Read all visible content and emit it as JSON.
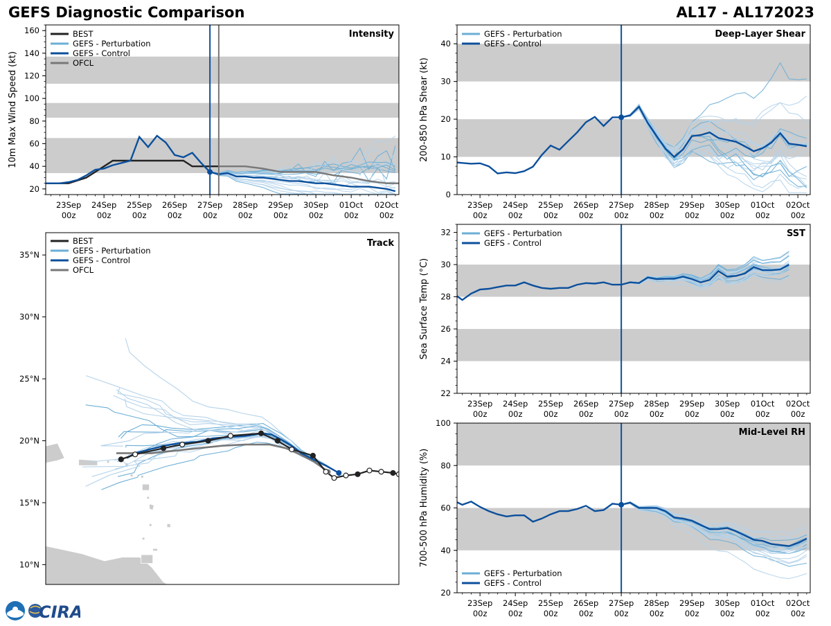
{
  "header": {
    "title": "GEFS Diagnostic Comparison",
    "storm_id": "AL17 - AL172023"
  },
  "colors": {
    "best": "#222222",
    "perturbation": "#6baed6",
    "perturbation_light": "#b5d3ea",
    "control": "#0b4f9c",
    "ofcl": "#777777",
    "band": "#cccccc",
    "land": "#cccccc"
  },
  "time_axis": {
    "tick_labels": [
      [
        "23Sep",
        "00z"
      ],
      [
        "24Sep",
        "00z"
      ],
      [
        "25Sep",
        "00z"
      ],
      [
        "26Sep",
        "00z"
      ],
      [
        "27Sep",
        "00z"
      ],
      [
        "28Sep",
        "00z"
      ],
      [
        "29Sep",
        "00z"
      ],
      [
        "30Sep",
        "00z"
      ],
      [
        "01Oct",
        "00z"
      ],
      [
        "02Oct",
        "00z"
      ]
    ],
    "range_days": [
      -0.65,
      9.35
    ],
    "init_day": 4.0,
    "ofcl_start_day": 4.25
  },
  "logo": {
    "text": "CIRA",
    "icon": "noaa-logo-icon"
  },
  "chart_data": [
    {
      "id": "intensity",
      "type": "line",
      "title": "Intensity",
      "ylabel": "10m Max Wind Speed (kt)",
      "ylim": [
        15,
        165
      ],
      "yticks": [
        20,
        40,
        60,
        80,
        100,
        120,
        140,
        160
      ],
      "bands": [
        [
          34,
          65
        ],
        [
          83,
          96
        ],
        [
          113,
          137
        ]
      ],
      "legend": [
        "BEST",
        "GEFS - Perturbation",
        "GEFS - Control",
        "OFCL"
      ],
      "series": [
        {
          "name": "BEST",
          "x": [
            -0.75,
            0,
            0.5,
            1,
            1.25,
            1.75,
            2,
            2.5,
            3,
            3.25,
            3.5,
            4,
            4.25
          ],
          "y": [
            25,
            25,
            30,
            40,
            45,
            45,
            45,
            45,
            45,
            45,
            40,
            40,
            40
          ]
        },
        {
          "name": "GEFS - Control",
          "x": [
            -0.75,
            -0.25,
            0,
            0.25,
            0.5,
            0.75,
            1,
            1.25,
            1.5,
            1.75,
            2,
            2.25,
            2.5,
            2.75,
            3,
            3.25,
            3.5,
            3.75,
            4,
            4.25,
            4.5,
            4.75,
            5,
            5.25,
            5.5,
            5.75,
            6,
            6.25,
            6.5,
            6.75,
            7,
            7.25,
            7.5,
            7.75,
            8,
            8.25,
            8.5,
            8.75,
            9,
            9.25
          ],
          "y": [
            25,
            25,
            26,
            28,
            32,
            37,
            38,
            41,
            43,
            45,
            66,
            57,
            67,
            61,
            50,
            48,
            52,
            43,
            35,
            33,
            34,
            31,
            31,
            30,
            30,
            29,
            28,
            27,
            27,
            26,
            25,
            25,
            24,
            23,
            22,
            22,
            22,
            21,
            20,
            18
          ]
        },
        {
          "name": "OFCL",
          "x": [
            4.25,
            5,
            5.5,
            6,
            6.5,
            7,
            7.5,
            8,
            8.5,
            9,
            9.35
          ],
          "y": [
            40,
            40,
            38,
            35,
            35,
            35,
            32,
            30,
            27,
            25,
            25
          ]
        }
      ],
      "perturbation_members": 20
    },
    {
      "id": "shear",
      "type": "line",
      "title": "Deep-Layer Shear",
      "ylabel": "200-850 hPa Shear (kt)",
      "ylim": [
        0,
        45
      ],
      "yticks": [
        0,
        10,
        20,
        30,
        40
      ],
      "bands": [
        [
          10,
          20
        ],
        [
          30,
          40
        ]
      ],
      "legend": [
        "GEFS - Perturbation",
        "GEFS - Control"
      ],
      "series": [
        {
          "name": "GEFS - Control",
          "x": [
            -0.75,
            -0.5,
            -0.25,
            0,
            0.25,
            0.5,
            0.75,
            1,
            1.25,
            1.5,
            1.75,
            2,
            2.25,
            2.5,
            2.75,
            3,
            3.25,
            3.5,
            3.75,
            4,
            4.25,
            4.5,
            4.75,
            5,
            5.25,
            5.5,
            5.75,
            6,
            6.25,
            6.5,
            6.75,
            7,
            7.25,
            7.5,
            7.75,
            8,
            8.25,
            8.5,
            8.75,
            9,
            9.25
          ],
          "y": [
            8.6,
            8.4,
            8.2,
            8.3,
            7.5,
            5.6,
            5.9,
            5.7,
            6.2,
            7.4,
            10.5,
            13,
            11.9,
            14.2,
            16.5,
            19.2,
            20.6,
            18.2,
            20.5,
            20.5,
            21,
            23.3,
            19,
            15.5,
            12.2,
            10,
            12,
            15.5,
            15.8,
            16.5,
            15,
            14.5,
            14,
            12.8,
            11.5,
            12.3,
            13.8,
            16.3,
            13.5,
            13.2,
            12.8
          ]
        }
      ],
      "perturbation_members": 20
    },
    {
      "id": "sst",
      "type": "line",
      "title": "SST",
      "ylabel": "Sea Surface Temp (°C)",
      "ylim": [
        22,
        32.5
      ],
      "yticks": [
        22,
        24,
        26,
        28,
        30,
        32
      ],
      "bands": [
        [
          24,
          26
        ],
        [
          28,
          30
        ]
      ],
      "legend": [
        "GEFS - Perturbation",
        "GEFS - Control"
      ],
      "series": [
        {
          "name": "GEFS - Control",
          "x": [
            -0.75,
            -0.5,
            -0.25,
            0,
            0.25,
            0.5,
            0.75,
            1,
            1.25,
            1.5,
            1.75,
            2,
            2.25,
            2.5,
            2.75,
            3,
            3.25,
            3.5,
            3.75,
            4,
            4.25,
            4.5,
            4.75,
            5,
            5.25,
            5.5,
            5.75,
            6,
            6.25,
            6.5,
            6.75,
            7,
            7.25,
            7.5,
            7.75,
            8,
            8.25,
            8.5,
            8.75
          ],
          "y": [
            28.2,
            27.8,
            28.2,
            28.45,
            28.5,
            28.6,
            28.7,
            28.7,
            28.9,
            28.7,
            28.55,
            28.5,
            28.55,
            28.55,
            28.75,
            28.85,
            28.82,
            28.9,
            28.75,
            28.75,
            28.9,
            28.85,
            29.2,
            29.1,
            29.12,
            29.12,
            29.25,
            29.1,
            28.9,
            29.05,
            29.6,
            29.25,
            29.3,
            29.45,
            29.85,
            29.65,
            29.65,
            29.7,
            30.0
          ]
        }
      ],
      "perturbation_members": 20
    },
    {
      "id": "rh",
      "type": "line",
      "title": "Mid-Level RH",
      "ylabel": "700-500 hPa Humidity (%)",
      "ylim": [
        20,
        100
      ],
      "yticks": [
        20,
        40,
        60,
        80,
        100
      ],
      "bands": [
        [
          40,
          60
        ],
        [
          80,
          100
        ]
      ],
      "legend": [
        "GEFS - Perturbation",
        "GEFS - Control"
      ],
      "series": [
        {
          "name": "GEFS - Control",
          "x": [
            -0.75,
            -0.5,
            -0.25,
            0,
            0.25,
            0.5,
            0.75,
            1,
            1.25,
            1.5,
            1.75,
            2,
            2.25,
            2.5,
            2.75,
            3,
            3.25,
            3.5,
            3.75,
            4,
            4.25,
            4.5,
            4.75,
            5,
            5.25,
            5.5,
            5.75,
            6,
            6.25,
            6.5,
            6.75,
            7,
            7.25,
            7.5,
            7.75,
            8,
            8.25,
            8.5,
            8.75,
            9,
            9.25
          ],
          "y": [
            63.5,
            61.5,
            63,
            60.5,
            58.5,
            57,
            56,
            56.5,
            56.5,
            53.5,
            55,
            57,
            58.5,
            58.5,
            59.5,
            61,
            58.5,
            59,
            62,
            61.5,
            62.5,
            60,
            60,
            60,
            58.5,
            55.5,
            55,
            54,
            52,
            50,
            50,
            50.5,
            49,
            47,
            45,
            44.5,
            43,
            42.5,
            42,
            43.5,
            45.5
          ]
        }
      ],
      "perturbation_members": 20
    },
    {
      "id": "track",
      "type": "scatter",
      "title": "Track",
      "lat_range": [
        8.4,
        36.8
      ],
      "lon_range": [
        -70.0,
        -40.0
      ],
      "lat_ticks": [
        {
          "value": 10,
          "label": "10°N"
        },
        {
          "value": 15,
          "label": "15°N"
        },
        {
          "value": 20,
          "label": "20°N"
        },
        {
          "value": 25,
          "label": "25°N"
        },
        {
          "value": 30,
          "label": "30°N"
        },
        {
          "value": 35,
          "label": "35°N"
        }
      ],
      "legend": [
        "BEST",
        "GEFS - Perturbation",
        "GEFS - Control",
        "OFCL"
      ],
      "best_track": {
        "lon": [
          -40.0,
          -40.5,
          -41.5,
          -42.5,
          -43.5,
          -44.5,
          -45.5,
          -46.2,
          -47.3,
          -49.1,
          -50.3,
          -51.7,
          -54.3,
          -56.2,
          -58.4,
          -60.0,
          -62.4,
          -63.6
        ],
        "lat": [
          17.3,
          17.4,
          17.5,
          17.6,
          17.3,
          17.2,
          17.0,
          17.5,
          18.8,
          19.3,
          20.0,
          20.6,
          20.4,
          20.0,
          19.7,
          19.4,
          18.9,
          18.5
        ],
        "filled": [
          false,
          true,
          false,
          false,
          true,
          false,
          false,
          false,
          true,
          false,
          true,
          true,
          false,
          true,
          false,
          true,
          false,
          true
        ]
      },
      "control_track": {
        "lon": [
          -45.1,
          -46.2,
          -47.3,
          -48.3,
          -49.1,
          -50.0,
          -50.8,
          -51.5,
          -53.0,
          -54.4,
          -55.8,
          -57.2,
          -58.7,
          -59.9,
          -61.2,
          -62.4,
          -63.1
        ],
        "lat": [
          17.4,
          18.0,
          18.5,
          19.0,
          19.6,
          20.1,
          20.5,
          20.6,
          20.4,
          20.3,
          20.2,
          19.9,
          19.8,
          19.6,
          19.3,
          19.0,
          18.6
        ]
      },
      "ofcl_track": {
        "lon": [
          -46.0,
          -47.2,
          -48.4,
          -49.6,
          -51.0,
          -53.0,
          -55.0,
          -57.0,
          -59.0,
          -61.0,
          -62.5,
          -64.0
        ],
        "lat": [
          17.5,
          18.3,
          18.9,
          19.4,
          19.7,
          19.7,
          19.6,
          19.4,
          19.2,
          19.0,
          19.0,
          19.0
        ]
      },
      "perturbation_members": 20
    }
  ]
}
